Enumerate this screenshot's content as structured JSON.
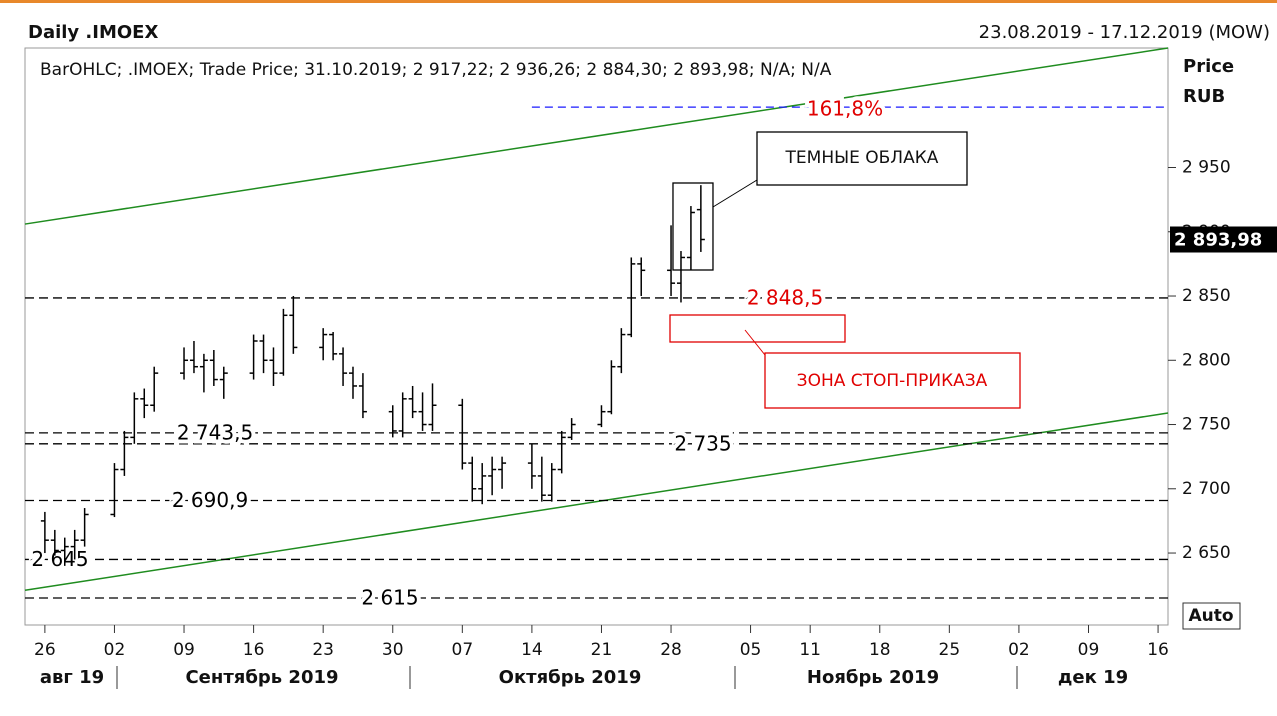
{
  "chart_data": {
    "type": "ohlc",
    "title": "Daily .IMOEX",
    "subtitle": "23.08.2019 - 17.12.2019 (MOW)",
    "legend_text": "BarOHLC; .IMOEX; Trade Price;  31.10.2019; 2 917,22; 2 936,26; 2 884,30; 2 893,98; N/A; N/A",
    "y_label": "Price",
    "y_unit": "RUB",
    "auto_label": "Auto",
    "color": "#000000",
    "xlim": [
      "2019-08-24",
      "2019-12-17"
    ],
    "ylim": [
      2594,
      3043
    ],
    "yticks": [
      {
        "value": 2650,
        "label": "2 650"
      },
      {
        "value": 2700,
        "label": "2 700"
      },
      {
        "value": 2750,
        "label": "2 750"
      },
      {
        "value": 2800,
        "label": "2 800"
      },
      {
        "value": 2850,
        "label": "2 850"
      },
      {
        "value": 2900,
        "label": "2 900"
      },
      {
        "value": 2950,
        "label": "2 950"
      }
    ],
    "xticks": [
      {
        "value": "2019-08-26",
        "label": "26"
      },
      {
        "value": "2019-09-02",
        "label": "02"
      },
      {
        "value": "2019-09-09",
        "label": "09"
      },
      {
        "value": "2019-09-16",
        "label": "16"
      },
      {
        "value": "2019-09-23",
        "label": "23"
      },
      {
        "value": "2019-09-30",
        "label": "30"
      },
      {
        "value": "2019-10-07",
        "label": "07"
      },
      {
        "value": "2019-10-14",
        "label": "14"
      },
      {
        "value": "2019-10-21",
        "label": "21"
      },
      {
        "value": "2019-10-28",
        "label": "28"
      },
      {
        "value": "2019-11-05",
        "label": "05"
      },
      {
        "value": "2019-11-11",
        "label": "11"
      },
      {
        "value": "2019-11-18",
        "label": "18"
      },
      {
        "value": "2019-11-25",
        "label": "25"
      },
      {
        "value": "2019-12-02",
        "label": "02"
      },
      {
        "value": "2019-12-09",
        "label": "09"
      },
      {
        "value": "2019-12-16",
        "label": "16"
      }
    ],
    "months": [
      "авг 19",
      "Сентябрь 2019",
      "Октябрь 2019",
      "Ноябрь 2019",
      "дек 19"
    ],
    "x": [
      "2019-08-26",
      "2019-08-27",
      "2019-08-28",
      "2019-08-29",
      "2019-08-30",
      "2019-09-02",
      "2019-09-03",
      "2019-09-04",
      "2019-09-05",
      "2019-09-06",
      "2019-09-09",
      "2019-09-10",
      "2019-09-11",
      "2019-09-12",
      "2019-09-13",
      "2019-09-16",
      "2019-09-17",
      "2019-09-18",
      "2019-09-19",
      "2019-09-20",
      "2019-09-23",
      "2019-09-24",
      "2019-09-25",
      "2019-09-26",
      "2019-09-27",
      "2019-09-30",
      "2019-10-01",
      "2019-10-02",
      "2019-10-03",
      "2019-10-04",
      "2019-10-07",
      "2019-10-08",
      "2019-10-09",
      "2019-10-10",
      "2019-10-11",
      "2019-10-14",
      "2019-10-15",
      "2019-10-16",
      "2019-10-17",
      "2019-10-18",
      "2019-10-21",
      "2019-10-22",
      "2019-10-23",
      "2019-10-24",
      "2019-10-25",
      "2019-10-28",
      "2019-10-29",
      "2019-10-30",
      "2019-10-31"
    ],
    "open": [
      2675,
      2660,
      2652,
      2655,
      2660,
      2680,
      2715,
      2740,
      2770,
      2765,
      2790,
      2800,
      2795,
      2800,
      2785,
      2790,
      2815,
      2800,
      2790,
      2835,
      2810,
      2820,
      2805,
      2790,
      2780,
      2760,
      2745,
      2770,
      2760,
      2750,
      2765,
      2720,
      2700,
      2710,
      2715,
      2720,
      2710,
      2695,
      2715,
      2740,
      2750,
      2760,
      2795,
      2820,
      2875,
      2870,
      2860,
      2880,
      2917.22
    ],
    "high": [
      2682,
      2668,
      2662,
      2668,
      2685,
      2720,
      2745,
      2775,
      2778,
      2795,
      2810,
      2815,
      2805,
      2808,
      2795,
      2820,
      2820,
      2810,
      2840,
      2850,
      2825,
      2822,
      2810,
      2795,
      2790,
      2765,
      2775,
      2780,
      2775,
      2782,
      2770,
      2725,
      2720,
      2725,
      2725,
      2735,
      2725,
      2720,
      2745,
      2755,
      2765,
      2800,
      2825,
      2880,
      2880,
      2905,
      2885,
      2920,
      2936.26
    ],
    "low": [
      2650,
      2648,
      2640,
      2645,
      2655,
      2678,
      2710,
      2735,
      2755,
      2760,
      2785,
      2790,
      2775,
      2780,
      2770,
      2785,
      2790,
      2780,
      2788,
      2805,
      2800,
      2800,
      2780,
      2770,
      2755,
      2740,
      2740,
      2755,
      2745,
      2745,
      2715,
      2690,
      2688,
      2695,
      2700,
      2700,
      2690,
      2690,
      2712,
      2738,
      2748,
      2758,
      2790,
      2818,
      2850,
      2850,
      2845,
      2870,
      2884.3
    ],
    "close": [
      2660,
      2652,
      2655,
      2660,
      2680,
      2715,
      2740,
      2770,
      2765,
      2790,
      2800,
      2795,
      2800,
      2785,
      2790,
      2815,
      2800,
      2790,
      2835,
      2810,
      2820,
      2805,
      2790,
      2780,
      2760,
      2745,
      2770,
      2760,
      2750,
      2765,
      2720,
      2700,
      2710,
      2715,
      2720,
      2710,
      2695,
      2715,
      2740,
      2750,
      2760,
      2795,
      2820,
      2875,
      2870,
      2860,
      2880,
      2915,
      2893.98
    ],
    "last_price": {
      "value": 2893.98,
      "label": "2 893,98"
    },
    "levels": [
      {
        "value": 2848.5,
        "label": "2 848,5",
        "color": "#e00000"
      },
      {
        "value": 2743.5,
        "label": "2 743,5",
        "color": "#000000"
      },
      {
        "value": 2735,
        "label": "2 735",
        "color": "#000000"
      },
      {
        "value": 2690.9,
        "label": "2 690,9",
        "color": "#000000"
      },
      {
        "value": 2645,
        "label": "2 645",
        "color": "#000000"
      },
      {
        "value": 2615,
        "label": "2 615",
        "color": "#000000"
      }
    ],
    "fib": {
      "value": 2997,
      "label": "161,8%",
      "x_start": "2019-10-14",
      "color": "#1a1aff",
      "label_color": "#e00000"
    },
    "trendlines": [
      {
        "x": [
          "2019-08-24",
          "2019-12-17"
        ],
        "y": [
          2906,
          3043
        ],
        "color": "#1f8c1f"
      },
      {
        "x": [
          "2019-08-24",
          "2019-12-17"
        ],
        "y": [
          2621,
          2759
        ],
        "color": "#1f8c1f"
      }
    ],
    "annotations": [
      "ТЕМНЫЕ ОБЛАКА",
      "ЗОНА СТОП-ПРИКАЗА"
    ]
  }
}
